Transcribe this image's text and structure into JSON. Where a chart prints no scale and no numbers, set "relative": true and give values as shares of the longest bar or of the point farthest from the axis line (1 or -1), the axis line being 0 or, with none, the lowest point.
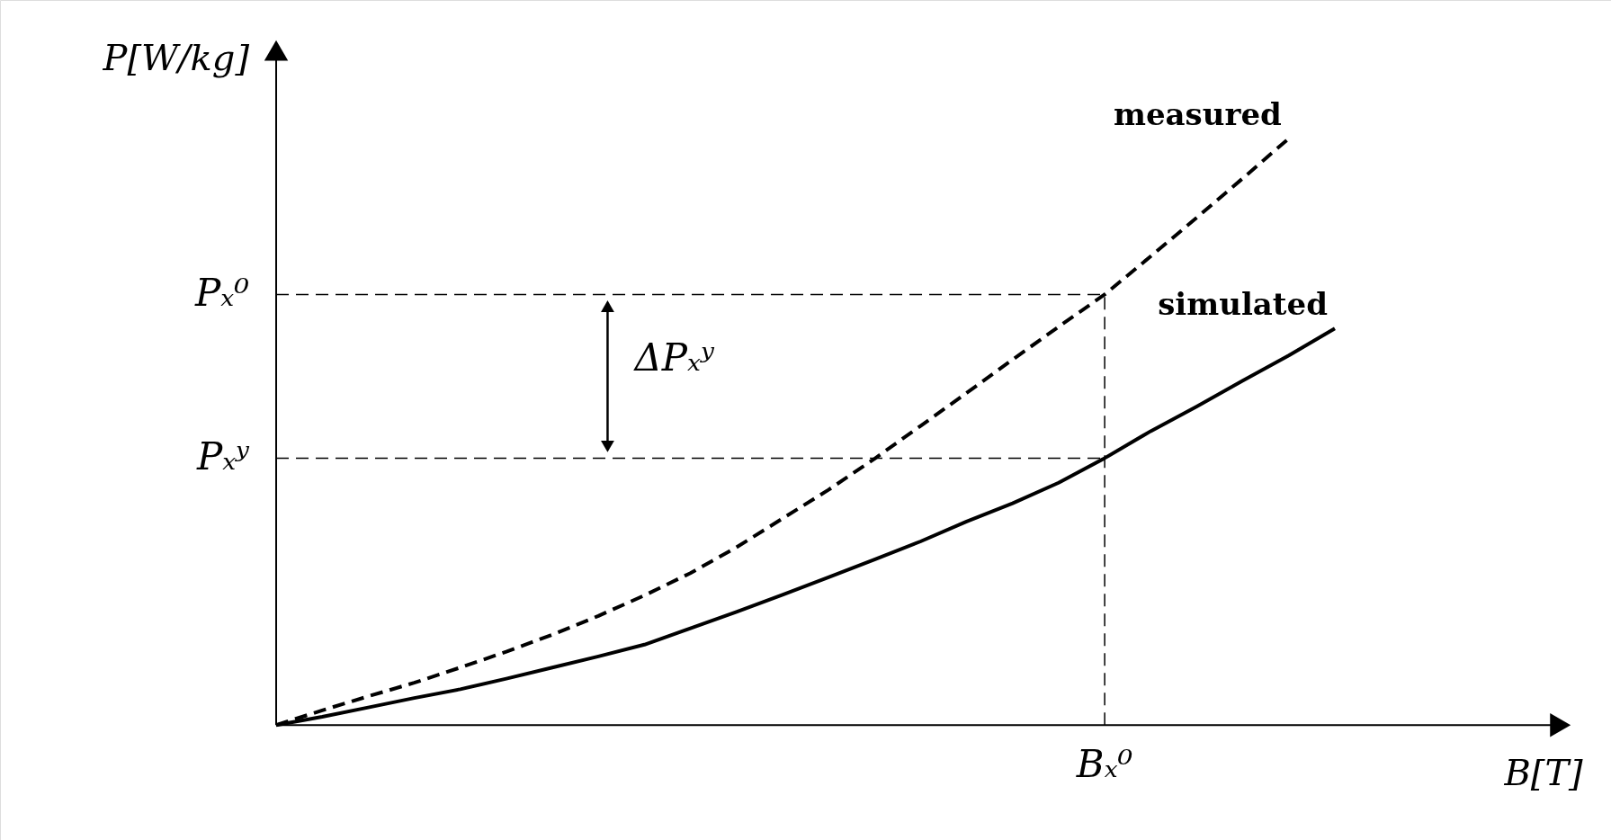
{
  "chart_data": {
    "type": "line",
    "relative": true,
    "xlabel": "B[T]",
    "ylabel": "P[W/kg]",
    "categories": [
      null,
      null,
      null,
      null,
      null,
      null,
      null,
      null,
      null,
      null,
      null,
      null,
      null,
      null,
      null,
      null,
      null,
      null,
      null,
      null,
      null,
      null,
      null,
      null
    ],
    "series": [
      {
        "name": "measured",
        "color": "#000000",
        "line_style": "dashed",
        "values": [
          0,
          0.025,
          0.049,
          0.072,
          0.098,
          0.125,
          0.154,
          0.186,
          0.221,
          0.259,
          0.303,
          0.352,
          0.401,
          0.454,
          0.51,
          0.566,
          0.623,
          0.679,
          0.734,
          0.799,
          0.865,
          0.932,
          1.0,
          null
        ]
      },
      {
        "name": "simulated",
        "color": "#000000",
        "line_style": "solid",
        "values": [
          0,
          0.014,
          0.03,
          0.046,
          0.061,
          0.079,
          0.098,
          0.117,
          0.137,
          0.165,
          0.193,
          0.222,
          0.252,
          0.282,
          0.313,
          0.347,
          0.378,
          0.413,
          0.455,
          0.501,
          0.543,
          0.587,
          0.63,
          0.676
        ]
      }
    ],
    "ref_lines": [
      {
        "axis": "y",
        "value": 0.734,
        "label": "Pₓ⁰",
        "line_style": "dashed",
        "color": "#000000"
      },
      {
        "axis": "y",
        "value": 0.455,
        "label": "Pₓʸ",
        "line_style": "dashed",
        "color": "#000000"
      }
    ],
    "annotations": [
      "ΔPₓʸ",
      "Bₓ⁰"
    ]
  }
}
